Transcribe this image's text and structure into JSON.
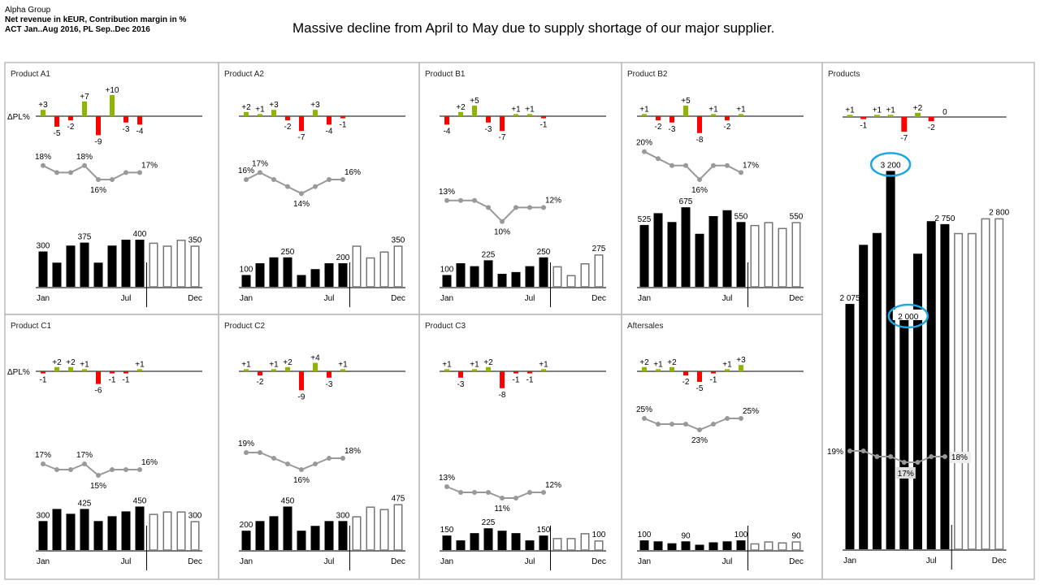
{
  "header": {
    "company": "Alpha Group",
    "measures": "Net revenue in kEUR, Contribution margin in %",
    "scenario": "ACT Jan..Aug 2016, PL Sep..Dec 2016"
  },
  "headline": "Massive decline from April to May due to supply shortage of our major supplier.",
  "colors": {
    "positive": "#8db600",
    "negative": "#ff0000",
    "actual": "#000000",
    "plan_outline": "#777777",
    "margin_line": "#999999",
    "highlight": "#1ea7e1"
  },
  "chart_data": {
    "type": "small-multiples (bar + line + variance bars)",
    "months": [
      "Jan",
      "Feb",
      "Mar",
      "Apr",
      "May",
      "Jun",
      "Jul",
      "Aug",
      "Sep",
      "Oct",
      "Nov",
      "Dec"
    ],
    "month_tick_labels": [
      "Jan",
      "Jul",
      "Dec"
    ],
    "actual_months": 8,
    "delta_label": "ΔPL%",
    "panels": [
      {
        "title": "Product A1",
        "delta": [
          3,
          -5,
          -2,
          7,
          -9,
          10,
          -3,
          -4
        ],
        "margin": [
          18,
          17,
          17,
          18,
          16,
          16,
          17,
          17
        ],
        "margin_labels": [
          0,
          3,
          4,
          7
        ],
        "revenue": [
          300,
          205,
          350,
          375,
          205,
          350,
          400,
          400,
          375,
          350,
          400,
          350
        ],
        "revenue_labels": [
          0,
          3,
          7,
          11
        ]
      },
      {
        "title": "Product A2",
        "delta": [
          2,
          1,
          3,
          -2,
          -7,
          3,
          -4,
          -1
        ],
        "margin": [
          16,
          17,
          16,
          15,
          14,
          15,
          16,
          16
        ],
        "margin_labels": [
          0,
          1,
          4,
          7
        ],
        "revenue": [
          100,
          200,
          250,
          250,
          100,
          150,
          200,
          200,
          350,
          250,
          300,
          350
        ],
        "revenue_labels": [
          0,
          3,
          7,
          11
        ]
      },
      {
        "title": "Product B1",
        "delta": [
          -4,
          2,
          5,
          -3,
          -7,
          1,
          1,
          -1
        ],
        "margin": [
          13,
          13,
          13,
          12,
          10,
          12,
          12,
          12
        ],
        "margin_labels": [
          0,
          4,
          7
        ],
        "revenue": [
          100,
          200,
          175,
          225,
          110,
          125,
          175,
          250,
          175,
          100,
          200,
          275
        ],
        "revenue_labels": [
          0,
          3,
          7,
          11
        ]
      },
      {
        "title": "Product B2",
        "delta": [
          1,
          -2,
          -3,
          5,
          -8,
          1,
          -2,
          1
        ],
        "margin": [
          20,
          19,
          18,
          18,
          16,
          18,
          18,
          17
        ],
        "margin_labels": [
          0,
          4,
          7
        ],
        "revenue": [
          525,
          625,
          550,
          675,
          450,
          600,
          650,
          550,
          525,
          550,
          500,
          550
        ],
        "revenue_labels": [
          0,
          3,
          7,
          11
        ]
      },
      {
        "title": "Product C1",
        "delta": [
          -1,
          2,
          2,
          1,
          -6,
          -1,
          -1,
          1
        ],
        "margin": [
          17,
          16,
          16,
          17,
          15,
          16,
          16,
          16
        ],
        "margin_labels": [
          0,
          3,
          4,
          7
        ],
        "revenue": [
          300,
          425,
          375,
          425,
          300,
          350,
          400,
          450,
          375,
          400,
          400,
          300
        ],
        "revenue_labels": [
          0,
          3,
          7,
          11
        ]
      },
      {
        "title": "Product C2",
        "delta": [
          1,
          -2,
          1,
          2,
          -9,
          4,
          -3,
          1
        ],
        "margin": [
          19,
          19,
          18,
          17,
          16,
          17,
          18,
          18
        ],
        "margin_labels": [
          0,
          4,
          7
        ],
        "revenue": [
          200,
          300,
          350,
          450,
          200,
          250,
          300,
          300,
          350,
          450,
          425,
          475
        ],
        "revenue_labels": [
          0,
          3,
          7,
          11
        ]
      },
      {
        "title": "Product C3",
        "delta": [
          1,
          -3,
          1,
          2,
          -8,
          -1,
          -1,
          1
        ],
        "margin": [
          13,
          12,
          12,
          12,
          11,
          11,
          12,
          12
        ],
        "margin_labels": [
          0,
          4,
          7
        ],
        "revenue": [
          150,
          100,
          175,
          225,
          200,
          175,
          100,
          150,
          125,
          125,
          175,
          100
        ],
        "revenue_labels": [
          0,
          3,
          7,
          11
        ]
      },
      {
        "title": "Aftersales",
        "delta": [
          2,
          1,
          2,
          -2,
          -5,
          -1,
          1,
          3
        ],
        "margin": [
          25,
          24,
          24,
          24,
          23,
          24,
          25,
          25
        ],
        "margin_labels": [
          0,
          4,
          7
        ],
        "revenue": [
          100,
          90,
          70,
          90,
          55,
          80,
          90,
          100,
          70,
          90,
          80,
          90
        ],
        "revenue_labels": [
          0,
          3,
          7,
          11
        ]
      },
      {
        "title": "Products",
        "delta": [
          1,
          -1,
          1,
          1,
          -7,
          2,
          -2,
          0
        ],
        "margin": [
          19,
          19,
          18,
          18,
          17,
          17,
          18,
          18
        ],
        "margin_labels": [
          0,
          4,
          7
        ],
        "revenue": [
          2075,
          2575,
          2675,
          3200,
          2000,
          2500,
          2775,
          2750,
          2675,
          2675,
          2800,
          2800
        ],
        "revenue_labels": [
          0,
          3,
          4,
          7,
          11
        ],
        "highlighted": [
          3,
          4
        ]
      }
    ]
  }
}
